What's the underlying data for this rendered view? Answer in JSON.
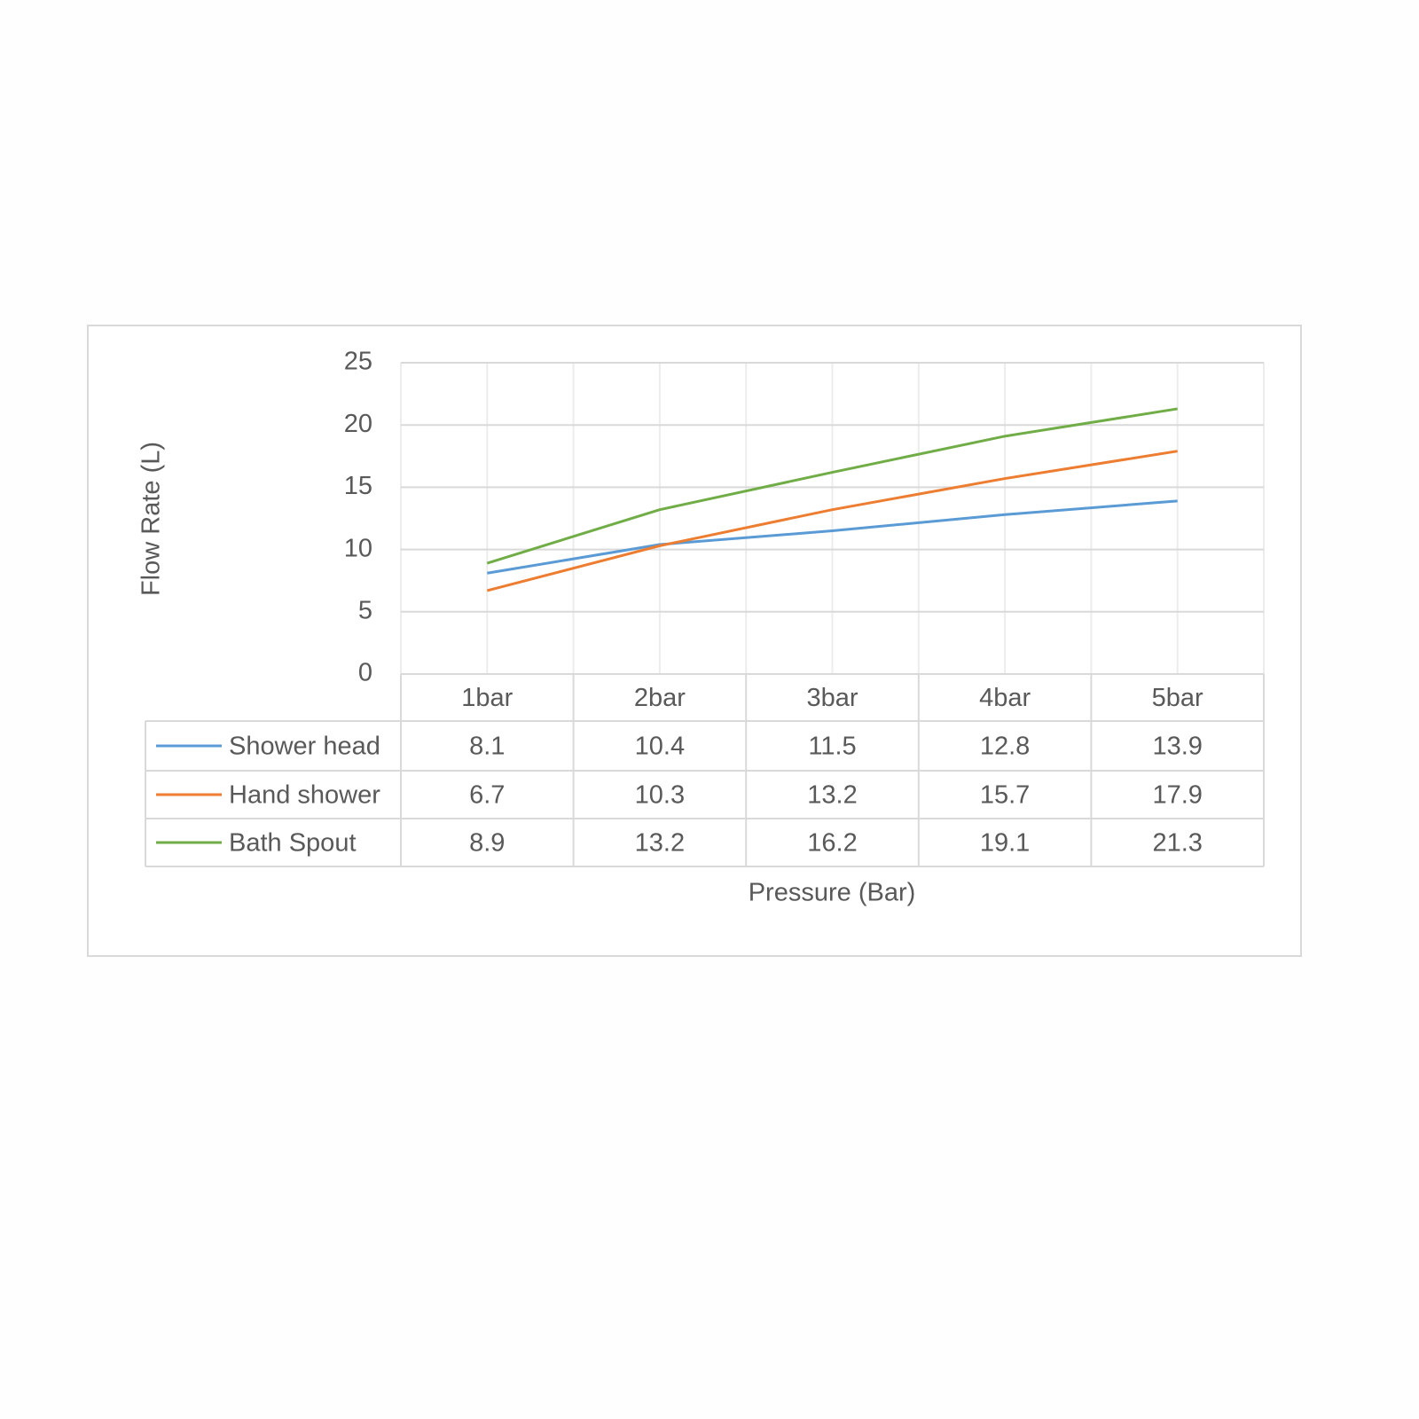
{
  "chart_data": {
    "type": "line",
    "y_label": "Flow Rate (L)",
    "x_label": "Pressure (Bar)",
    "categories": [
      "1bar",
      "2bar",
      "3bar",
      "4bar",
      "5bar"
    ],
    "series": [
      {
        "name": "Shower head",
        "color": "#5b9bd5",
        "values": [
          8.1,
          10.4,
          11.5,
          12.8,
          13.9
        ]
      },
      {
        "name": "Hand shower",
        "color": "#ed7d31",
        "values": [
          6.7,
          10.3,
          13.2,
          15.7,
          17.9
        ]
      },
      {
        "name": "Bath Spout",
        "color": "#70ad47",
        "values": [
          8.9,
          13.2,
          16.2,
          19.1,
          21.3
        ]
      }
    ],
    "ylim": [
      0,
      25
    ],
    "yticks": [
      0,
      5,
      10,
      15,
      20,
      25
    ],
    "grid": true,
    "data_table": true
  }
}
